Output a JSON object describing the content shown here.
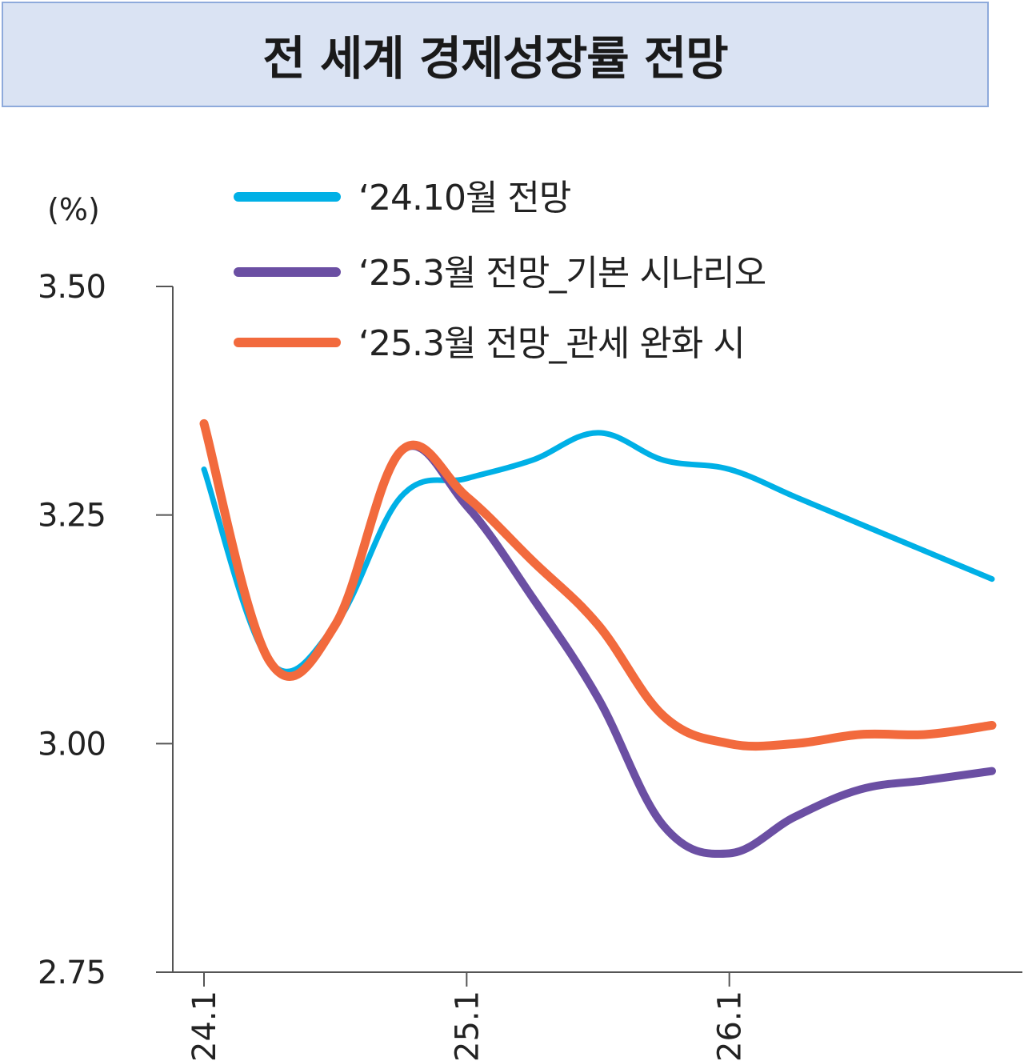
{
  "title": "전 세계 경제성장률 전망",
  "chart_data": {
    "type": "line",
    "title": "전 세계 경제성장률 전망",
    "ylabel": "(%)",
    "xlabel": "",
    "ylim": [
      2.75,
      3.5
    ],
    "yticks": [
      "3.50",
      "3.25",
      "3.00",
      "2.75"
    ],
    "ytick_values": [
      3.5,
      3.25,
      3.0,
      2.75
    ],
    "xlim": [
      0,
      12
    ],
    "xticks": [
      "'24.1",
      "'25.1",
      "'26.1"
    ],
    "xtick_values": [
      0,
      4,
      8
    ],
    "legend_position": "top",
    "grid": false,
    "series": [
      {
        "name": "‘24.10월 전망",
        "color": "#00b0e6",
        "x": [
          0,
          1,
          2,
          3,
          4,
          5,
          6,
          7,
          8,
          9,
          10,
          11,
          12
        ],
        "values": [
          3.3,
          3.09,
          3.13,
          3.27,
          3.29,
          3.31,
          3.34,
          3.31,
          3.3,
          3.27,
          3.24,
          3.21,
          3.18
        ]
      },
      {
        "name": "‘25.3월 전망_기본 시나리오",
        "color": "#6b4fa3",
        "x": [
          0,
          1,
          2,
          3,
          4,
          5,
          6,
          7,
          8,
          9,
          10,
          11,
          12
        ],
        "values": [
          3.35,
          3.09,
          3.13,
          3.32,
          3.26,
          3.16,
          3.05,
          2.91,
          2.88,
          2.92,
          2.95,
          2.96,
          2.97
        ]
      },
      {
        "name": "‘25.3월 전망_관세 완화 시",
        "color": "#f26a3d",
        "x": [
          0,
          1,
          2,
          3,
          4,
          5,
          6,
          7,
          8,
          9,
          10,
          11,
          12
        ],
        "values": [
          3.35,
          3.09,
          3.13,
          3.32,
          3.27,
          3.2,
          3.13,
          3.03,
          3.0,
          3.0,
          3.01,
          3.01,
          3.02
        ]
      }
    ]
  }
}
